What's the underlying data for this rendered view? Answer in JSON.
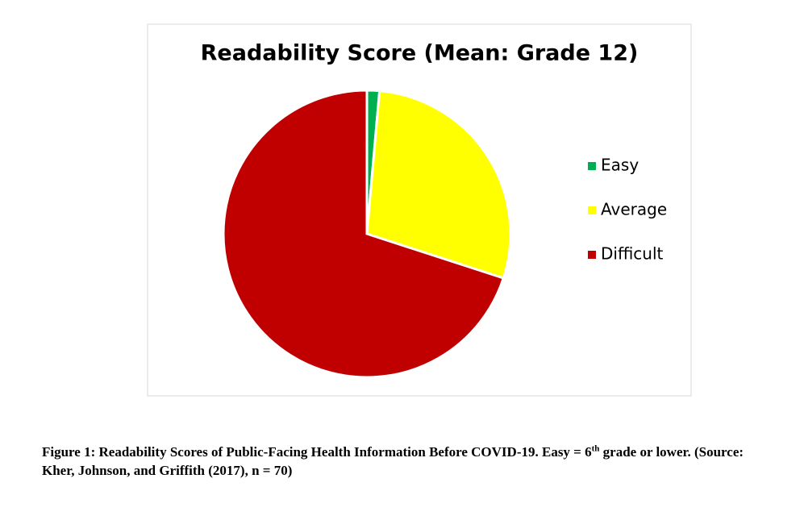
{
  "chart_data": {
    "type": "pie",
    "title": "Readability Score (Mean: Grade 12)",
    "categories": [
      "Easy",
      "Average",
      "Difficult"
    ],
    "values": [
      1.4,
      28.6,
      70
    ],
    "colors": [
      "#00b050",
      "#ffff00",
      "#c00000"
    ],
    "legend": "right"
  },
  "caption": {
    "text": "Figure 1: Readability Scores of Public-Facing Health Information Before COVID-19. Easy = 6",
    "superscript": "th",
    "rest": " grade or lower. (Source: Kher, Johnson, and Griffith (2017), n = 70)"
  }
}
